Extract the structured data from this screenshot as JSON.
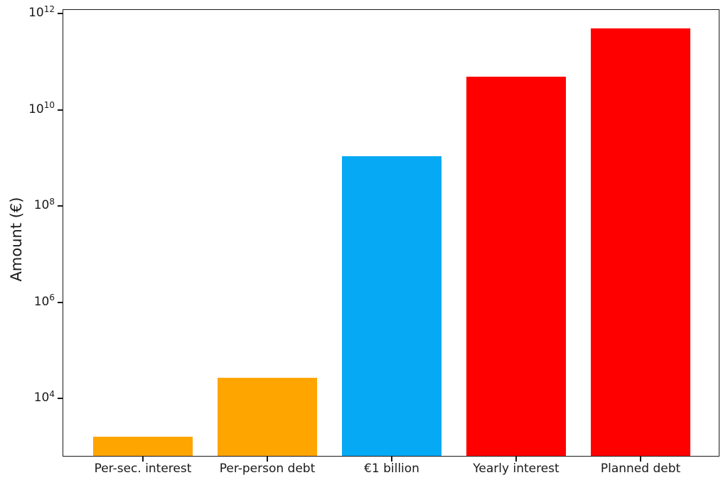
{
  "chart_data": {
    "type": "bar",
    "title": "",
    "xlabel": "",
    "ylabel": "Amount (€)",
    "yscale": "log",
    "grid": false,
    "legend": null,
    "ylim": [
      600,
      1190000000000
    ],
    "categories": [
      "Per-sec. interest",
      "Per-person debt",
      "€1 billion",
      "Yearly interest",
      "Planned debt"
    ],
    "values": [
      1500,
      25000,
      1000000000,
      45000000000,
      460000000000
    ],
    "bar_colors": [
      "#FFA500",
      "#FFA500",
      "#05A9F4",
      "#FF0000",
      "#FF0000"
    ],
    "yticks": [
      {
        "base": "10",
        "exponent": "12",
        "value": 1000000000000
      },
      {
        "base": "10",
        "exponent": "10",
        "value": 10000000000
      },
      {
        "base": "10",
        "exponent": "8",
        "value": 100000000
      },
      {
        "base": "10",
        "exponent": "6",
        "value": 1000000
      },
      {
        "base": "10",
        "exponent": "4",
        "value": 10000
      }
    ]
  }
}
